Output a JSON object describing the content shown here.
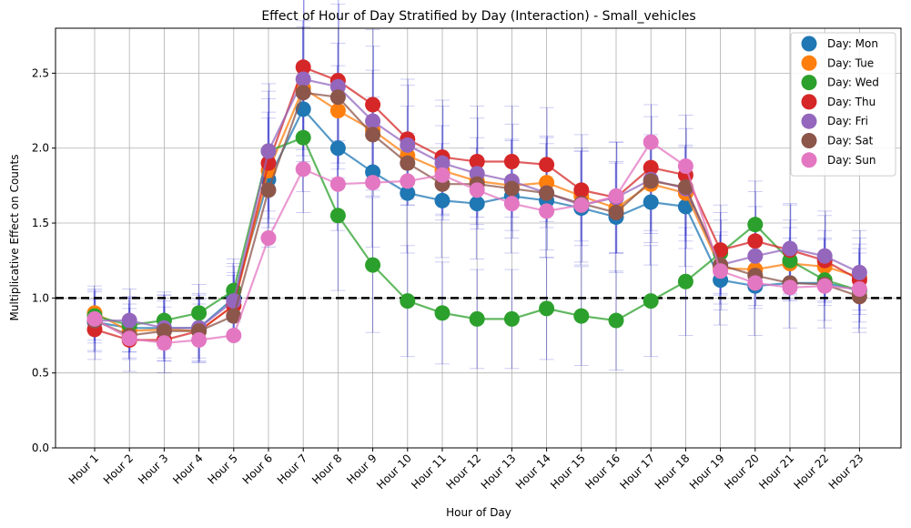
{
  "chart_data": {
    "type": "line",
    "title": "Effect of Hour of Day Stratified by Day (Interaction) - Small_vehicles",
    "xlabel": "Hour of Day",
    "ylabel": "Multiplicative Effect on Counts",
    "ylim": [
      0.0,
      2.8
    ],
    "yticks": [
      "0.0",
      "0.5",
      "1.0",
      "1.5",
      "2.0",
      "2.5"
    ],
    "grid": true,
    "legend_position": "top-right",
    "reference_line": {
      "y": 1.0,
      "style": "dashed",
      "color": "#000000"
    },
    "categories": [
      "Hour 1",
      "Hour 2",
      "Hour 3",
      "Hour 4",
      "Hour 5",
      "Hour 6",
      "Hour 7",
      "Hour 8",
      "Hour 9",
      "Hour 10",
      "Hour 11",
      "Hour 12",
      "Hour 13",
      "Hour 14",
      "Hour 15",
      "Hour 16",
      "Hour 17",
      "Hour 18",
      "Hour 19",
      "Hour 20",
      "Hour 21",
      "Hour 22",
      "Hour 23"
    ],
    "series": [
      {
        "name": "Day: Mon",
        "color": "#1f77b4",
        "values": [
          0.84,
          0.8,
          0.8,
          0.8,
          1.0,
          1.79,
          2.26,
          2.0,
          1.84,
          1.7,
          1.65,
          1.63,
          1.68,
          1.65,
          1.6,
          1.54,
          1.64,
          1.61,
          1.12,
          1.08,
          1.1,
          1.1,
          1.05
        ]
      },
      {
        "name": "Day: Tue",
        "color": "#ff7f0e",
        "values": [
          0.9,
          0.78,
          0.79,
          0.78,
          0.95,
          1.85,
          2.4,
          2.25,
          2.12,
          1.95,
          1.85,
          1.78,
          1.75,
          1.77,
          1.68,
          1.6,
          1.76,
          1.7,
          1.2,
          1.19,
          1.23,
          1.21,
          1.14
        ]
      },
      {
        "name": "Day: Wed",
        "color": "#2ca02c",
        "values": [
          0.88,
          0.82,
          0.85,
          0.9,
          1.05,
          1.98,
          2.07,
          1.55,
          1.22,
          0.98,
          0.9,
          0.86,
          0.86,
          0.93,
          0.88,
          0.85,
          0.98,
          1.11,
          1.3,
          1.49,
          1.25,
          1.12,
          1.05
        ]
      },
      {
        "name": "Day: Thu",
        "color": "#d62728",
        "values": [
          0.79,
          0.72,
          0.72,
          0.78,
          0.95,
          1.9,
          2.54,
          2.45,
          2.29,
          2.06,
          1.94,
          1.91,
          1.91,
          1.89,
          1.72,
          1.67,
          1.87,
          1.82,
          1.32,
          1.38,
          1.32,
          1.25,
          1.12
        ]
      },
      {
        "name": "Day: Fri",
        "color": "#9467bd",
        "values": [
          0.85,
          0.85,
          0.8,
          0.8,
          0.98,
          1.98,
          2.46,
          2.41,
          2.18,
          2.02,
          1.9,
          1.83,
          1.78,
          1.7,
          1.62,
          1.67,
          1.79,
          1.73,
          1.22,
          1.28,
          1.33,
          1.28,
          1.17
        ]
      },
      {
        "name": "Day: Sat",
        "color": "#8c564b",
        "values": [
          0.85,
          0.75,
          0.78,
          0.78,
          0.88,
          1.72,
          2.37,
          2.34,
          2.09,
          1.9,
          1.76,
          1.76,
          1.73,
          1.7,
          1.63,
          1.57,
          1.78,
          1.74,
          1.22,
          1.15,
          1.1,
          1.09,
          1.01
        ]
      },
      {
        "name": "Day: Sun",
        "color": "#e377c2",
        "values": [
          0.86,
          0.73,
          0.7,
          0.72,
          0.75,
          1.4,
          1.86,
          1.76,
          1.77,
          1.78,
          1.82,
          1.72,
          1.63,
          1.58,
          1.62,
          1.68,
          2.04,
          1.88,
          1.18,
          1.1,
          1.07,
          1.08,
          1.06
        ]
      }
    ],
    "error_bar_color": "#0000cc",
    "error_bars": [
      [
        0.2,
        0.18,
        0.18,
        0.2,
        0.2
      ],
      [
        0.21,
        0.18,
        0.18,
        0.21,
        0.21
      ],
      [
        0.22,
        0.19,
        0.19,
        0.22,
        0.22
      ],
      [
        0.23,
        0.18,
        0.19,
        0.21,
        0.22
      ],
      [
        0.23,
        0.2,
        0.21,
        0.22,
        0.23
      ],
      [
        0.45,
        0.35,
        0.4,
        0.43,
        0.45
      ],
      [
        0.55,
        0.45,
        0.5,
        0.55,
        0.55
      ],
      [
        0.55,
        0.45,
        0.5,
        0.55,
        0.55
      ],
      [
        0.5,
        0.4,
        0.45,
        0.5,
        0.5
      ],
      [
        0.4,
        0.33,
        0.37,
        0.4,
        0.4
      ],
      [
        0.38,
        0.3,
        0.34,
        0.38,
        0.38
      ],
      [
        0.37,
        0.29,
        0.33,
        0.37,
        0.37
      ],
      [
        0.38,
        0.3,
        0.33,
        0.37,
        0.38
      ],
      [
        0.38,
        0.3,
        0.34,
        0.38,
        0.38
      ],
      [
        0.38,
        0.3,
        0.33,
        0.37,
        0.38
      ],
      [
        0.37,
        0.3,
        0.33,
        0.37,
        0.37
      ],
      [
        0.42,
        0.33,
        0.37,
        0.42,
        0.42
      ],
      [
        0.4,
        0.32,
        0.36,
        0.4,
        0.4
      ],
      [
        0.3,
        0.24,
        0.27,
        0.3,
        0.3
      ],
      [
        0.33,
        0.26,
        0.29,
        0.33,
        0.33
      ],
      [
        0.3,
        0.24,
        0.27,
        0.3,
        0.3
      ],
      [
        0.3,
        0.24,
        0.27,
        0.3,
        0.3
      ],
      [
        0.28,
        0.22,
        0.25,
        0.28,
        0.28
      ]
    ]
  }
}
